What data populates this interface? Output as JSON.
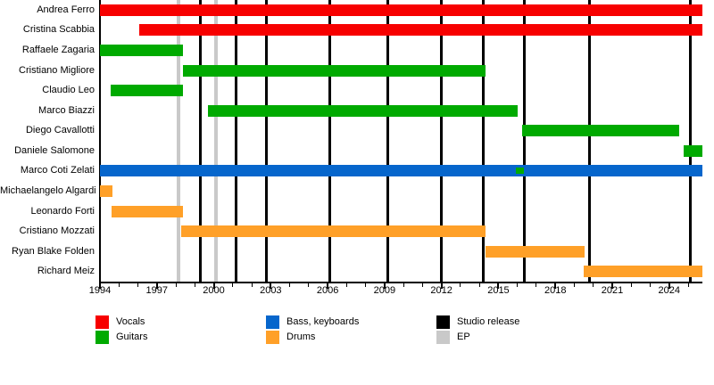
{
  "chart_data": {
    "type": "timeline",
    "description": "Band members timeline (Gantt-style) with studio release and EP markers",
    "axis": {
      "start": 1994,
      "end": 2025.75,
      "major_ticks": [
        1994,
        1997,
        2000,
        2003,
        2006,
        2009,
        2012,
        2015,
        2018,
        2021,
        2024
      ],
      "minor_tick_step": 1,
      "minor_tick_first": 1994,
      "minor_tick_last": 2025
    },
    "members": [
      {
        "name": "Andrea Ferro",
        "role": "vocals",
        "spans": [
          [
            1994.0,
            2025.75
          ]
        ]
      },
      {
        "name": "Cristina Scabbia",
        "role": "vocals",
        "spans": [
          [
            1996.07,
            2025.75
          ]
        ]
      },
      {
        "name": "Raffaele Zagaria",
        "role": "guitars",
        "spans": [
          [
            1994.0,
            1998.37
          ]
        ]
      },
      {
        "name": "Cristiano Migliore",
        "role": "guitars",
        "spans": [
          [
            1998.37,
            2014.31
          ]
        ]
      },
      {
        "name": "Claudio Leo",
        "role": "guitars",
        "spans": [
          [
            1994.55,
            1998.37
          ]
        ]
      },
      {
        "name": "Marco Biazzi",
        "role": "guitars",
        "spans": [
          [
            1999.69,
            2016.0
          ]
        ]
      },
      {
        "name": "Diego Cavallotti",
        "role": "guitars",
        "spans": [
          [
            2016.24,
            2024.52
          ]
        ]
      },
      {
        "name": "Daniele Salomone",
        "role": "guitars",
        "spans": [
          [
            2024.78,
            2025.75
          ]
        ]
      },
      {
        "name": "Marco Coti Zelati",
        "role": "bass_keyboards",
        "spans": [
          [
            1994.0,
            2025.75
          ]
        ],
        "overlay": {
          "role": "guitars",
          "span": [
            2015.9,
            2016.33
          ]
        }
      },
      {
        "name": "Michaelangelo Algardi",
        "role": "drums",
        "spans": [
          [
            1994.0,
            1994.66
          ]
        ]
      },
      {
        "name": "Leonardo Forti",
        "role": "drums",
        "spans": [
          [
            1994.6,
            1998.37
          ]
        ]
      },
      {
        "name": "Cristiano Mozzati",
        "role": "drums",
        "spans": [
          [
            1998.28,
            2014.31
          ]
        ]
      },
      {
        "name": "Ryan Blake Folden",
        "role": "drums",
        "spans": [
          [
            2014.31,
            2019.53
          ]
        ]
      },
      {
        "name": "Richard Meiz",
        "role": "drums",
        "spans": [
          [
            2019.48,
            2025.75
          ]
        ]
      }
    ],
    "releases": {
      "studio": [
        1999.31,
        2001.15,
        2002.77,
        2006.13,
        2009.19,
        2012.01,
        2014.21,
        2016.38,
        2019.81,
        2025.12
      ],
      "ep": [
        1998.14,
        2000.11
      ]
    }
  },
  "colors": {
    "vocals": "#f70000",
    "guitars": "#00aa00",
    "bass_keyboards": "#0666cc",
    "drums": "#ffa028",
    "studio": "#000000",
    "ep": "#c9c9c9"
  },
  "legend": {
    "items": [
      {
        "label": "Vocals",
        "color_key": "vocals",
        "col": 0,
        "row": 0
      },
      {
        "label": "Guitars",
        "color_key": "guitars",
        "col": 0,
        "row": 1
      },
      {
        "label": "Bass, keyboards",
        "color_key": "bass_keyboards",
        "col": 1,
        "row": 0
      },
      {
        "label": "Drums",
        "color_key": "drums",
        "col": 1,
        "row": 1
      },
      {
        "label": "Studio release",
        "color_key": "studio",
        "col": 2,
        "row": 0
      },
      {
        "label": "EP",
        "color_key": "ep",
        "col": 2,
        "row": 1
      }
    ]
  }
}
